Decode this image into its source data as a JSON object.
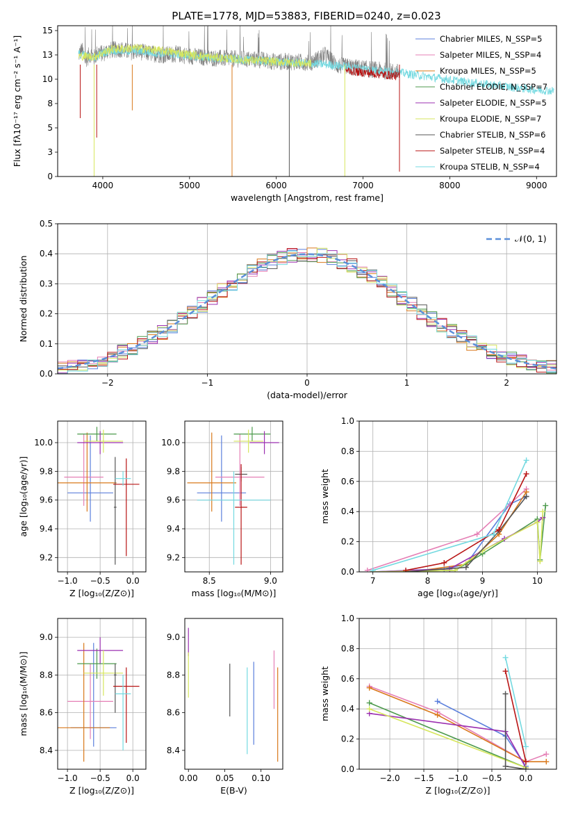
{
  "figure_title": "PLATE=1778, MJD=53883, FIBERID=0240, z=0.023",
  "colors": {
    "Chabrier MILES": "#5b7fdc",
    "Salpeter MILES": "#e57fb5",
    "Kroupa MILES": "#d9781a",
    "Chabrier ELODIE": "#4c9a4c",
    "Salpeter ELODIE": "#9b2fb0",
    "Kroupa ELODIE": "#d6e65c",
    "Chabrier STELIB": "#555555",
    "Salpeter STELIB": "#b81414",
    "Kroupa STELIB": "#73d9e0"
  },
  "chart_data": [
    {
      "id": "spectrum",
      "type": "line",
      "title": "PLATE=1778, MJD=53883, FIBERID=0240, z=0.023",
      "xlabel": "wavelength [Angstrom, rest frame]",
      "ylabel": "Flux [fλ10⁻¹⁷ erg cm⁻² s⁻¹ A⁻¹]",
      "xlim": [
        3480,
        9230
      ],
      "ylim": [
        0,
        15.5
      ],
      "xticks": [
        4000,
        5000,
        6000,
        7000,
        8000,
        9000
      ],
      "yticks": [
        0.0,
        2.5,
        5.0,
        7.5,
        10.0,
        12.5,
        15.0
      ],
      "legend": "top-right",
      "legend_entries": [
        "Chabrier MILES, N_SSP=5",
        "Salpeter MILES, N_SSP=4",
        "Kroupa MILES, N_SSP=5",
        "Chabrier ELODIE, N_SSP=7",
        "Salpeter ELODIE, N_SSP=5",
        "Kroupa ELODIE, N_SSP=7",
        "Chabrier STELIB, N_SSP=6",
        "Salpeter STELIB, N_SSP=4",
        "Kroupa STELIB, N_SSP=4"
      ],
      "data_series": {
        "name": "data",
        "color": "#808080",
        "x": [
          3720,
          3760,
          3800,
          3860,
          3900,
          3950,
          4000,
          4050,
          4100,
          4200,
          4300,
          4400,
          4500,
          4700,
          4860,
          5000,
          5200,
          5500,
          5800,
          6000,
          6200,
          6400,
          6563,
          6700,
          6900,
          7100,
          7300,
          7420
        ],
        "y": [
          12.5,
          13.0,
          12.0,
          12.6,
          12.2,
          12.8,
          12.6,
          12.9,
          13.0,
          13.1,
          12.8,
          12.9,
          12.7,
          12.5,
          12.6,
          12.4,
          12.2,
          12.1,
          12.0,
          11.8,
          11.8,
          11.7,
          12.5,
          11.4,
          11.2,
          11.0,
          10.8,
          10.7
        ]
      },
      "model_series": [
        {
          "name": "Kroupa STELIB",
          "x": [
            3720,
            3800,
            3900,
            4000,
            4100,
            4200,
            4400,
            4600,
            4800,
            5000,
            5400,
            5800,
            6200,
            6600,
            7000,
            7400,
            7800,
            8200,
            8600,
            9000,
            9200
          ],
          "y": [
            12.6,
            12.4,
            12.2,
            12.7,
            13.0,
            12.9,
            12.9,
            12.7,
            12.6,
            12.4,
            12.1,
            11.9,
            11.7,
            11.5,
            11.1,
            10.7,
            10.2,
            9.7,
            9.3,
            8.9,
            8.8
          ]
        },
        {
          "name": "Kroupa ELODIE",
          "x": [
            3720,
            3900,
            4100,
            4400,
            4800,
            5200,
            5600,
            6000,
            6400
          ],
          "y": [
            12.4,
            12.3,
            13.1,
            13.2,
            12.8,
            12.3,
            12.0,
            11.8,
            11.6
          ]
        },
        {
          "name": "Salpeter STELIB",
          "x": [
            6800,
            7000,
            7200,
            7420
          ],
          "y": [
            10.9,
            10.7,
            10.5,
            10.3
          ]
        }
      ],
      "dips": [
        {
          "name": "Kroupa ELODIE",
          "x": 3900,
          "y": 0.0
        },
        {
          "name": "Salpeter STELIB",
          "x": 3740,
          "y": 6.0
        },
        {
          "name": "Salpeter STELIB",
          "x": 3930,
          "y": 4.0
        },
        {
          "name": "Kroupa MILES",
          "x": 5490,
          "y": 0.0
        },
        {
          "name": "Kroupa ELODIE",
          "x": 6790,
          "y": 0.0
        },
        {
          "name": "Salpeter STELIB",
          "x": 7420,
          "y": 0.5
        },
        {
          "name": "Chabrier STELIB",
          "x": 6150,
          "y": 0.0
        },
        {
          "name": "Kroupa MILES",
          "x": 4340,
          "y": 6.8
        }
      ]
    },
    {
      "id": "residuals",
      "type": "line",
      "xlabel": "(data-model)/error",
      "ylabel": "Normed distribution",
      "xlim": [
        -2.5,
        2.5
      ],
      "ylim": [
        0,
        0.5
      ],
      "xticks": [
        -2,
        -1,
        0,
        1,
        2
      ],
      "yticks": [
        0.0,
        0.1,
        0.2,
        0.3,
        0.4,
        0.5
      ],
      "grid": true,
      "legend": "top-right",
      "legend_entries": [
        "𝒩(0, 1)"
      ],
      "gaussian": {
        "mean": 0,
        "sigma": 1,
        "color": "#5b8fd9"
      },
      "histogram_bin_width": 0.1
    },
    {
      "id": "age_vs_Z",
      "type": "scatter",
      "xlabel": "Z [log₁₀(Z/Z⊙)]",
      "ylabel": "age  [log₁₀(age/yr)]",
      "xlim": [
        -1.15,
        0.2
      ],
      "ylim": [
        9.1,
        10.15
      ],
      "xticks": [
        -1.0,
        -0.5,
        0.0
      ],
      "yticks": [
        9.2,
        9.4,
        9.6,
        9.8,
        10.0
      ],
      "grid": true,
      "points": [
        {
          "series": "Chabrier MILES",
          "x": -0.65,
          "xerr": [
            0.35,
            0.35
          ],
          "y": 9.65,
          "yerr": [
            0.2,
            0.4
          ]
        },
        {
          "series": "Salpeter MILES",
          "x": -0.75,
          "xerr": [
            0.3,
            0.3
          ],
          "y": 9.76,
          "yerr": [
            0.2,
            0.3
          ]
        },
        {
          "series": "Kroupa MILES",
          "x": -0.7,
          "xerr": [
            0.45,
            0.45
          ],
          "y": 9.72,
          "yerr": [
            0.2,
            0.35
          ]
        },
        {
          "series": "Chabrier ELODIE",
          "x": -0.55,
          "xerr": [
            0.3,
            0.3
          ],
          "y": 10.06,
          "yerr": [
            0.05,
            0.05
          ]
        },
        {
          "series": "Salpeter ELODIE",
          "x": -0.5,
          "xerr": [
            0.35,
            0.35
          ],
          "y": 10.0,
          "yerr": [
            0.08,
            0.08
          ]
        },
        {
          "series": "Kroupa ELODIE",
          "x": -0.45,
          "xerr": [
            0.3,
            0.3
          ],
          "y": 10.01,
          "yerr": [
            0.08,
            0.08
          ]
        },
        {
          "series": "Chabrier STELIB",
          "x": -0.27,
          "xerr": [
            0.02,
            0.02
          ],
          "y": 9.55,
          "yerr": [
            0.4,
            0.35
          ]
        },
        {
          "series": "Salpeter STELIB",
          "x": -0.1,
          "xerr": [
            0.2,
            0.2
          ],
          "y": 9.71,
          "yerr": [
            0.5,
            0.18
          ]
        },
        {
          "series": "Kroupa STELIB",
          "x": -0.15,
          "xerr": [
            0.12,
            0.12
          ],
          "y": 9.75,
          "yerr": [
            0.05,
            0.05
          ]
        }
      ]
    },
    {
      "id": "age_vs_mass",
      "type": "scatter",
      "xlabel": "mass [log₁₀(M/M⊙)]",
      "ylabel": "",
      "xlim": [
        8.3,
        9.1
      ],
      "ylim": [
        9.1,
        10.15
      ],
      "xticks": [
        8.5,
        9.0
      ],
      "yticks": [
        9.2,
        9.4,
        9.6,
        9.8,
        10.0
      ],
      "grid": true,
      "points": [
        {
          "series": "Chabrier MILES",
          "x": 8.6,
          "xerr": [
            0.2,
            0.2
          ],
          "y": 9.65,
          "yerr": [
            0.2,
            0.4
          ]
        },
        {
          "series": "Salpeter MILES",
          "x": 8.75,
          "xerr": [
            0.2,
            0.2
          ],
          "y": 9.76,
          "yerr": [
            0.2,
            0.3
          ]
        },
        {
          "series": "Kroupa MILES",
          "x": 8.52,
          "xerr": [
            0.2,
            0.2
          ],
          "y": 9.72,
          "yerr": [
            0.2,
            0.35
          ]
        },
        {
          "series": "Chabrier ELODIE",
          "x": 8.85,
          "xerr": [
            0.15,
            0.15
          ],
          "y": 10.06,
          "yerr": [
            0.05,
            0.05
          ]
        },
        {
          "series": "Salpeter ELODIE",
          "x": 8.95,
          "xerr": [
            0.12,
            0.12
          ],
          "y": 10.0,
          "yerr": [
            0.08,
            0.08
          ]
        },
        {
          "series": "Kroupa ELODIE",
          "x": 8.82,
          "xerr": [
            0.12,
            0.12
          ],
          "y": 10.01,
          "yerr": [
            0.08,
            0.08
          ]
        },
        {
          "series": "Chabrier STELIB",
          "x": 8.76,
          "xerr": [
            0.05,
            0.05
          ],
          "y": 9.78,
          "yerr": [
            0.05,
            0.05
          ]
        },
        {
          "series": "Salpeter STELIB",
          "x": 8.76,
          "xerr": [
            0.05,
            0.05
          ],
          "y": 9.55,
          "yerr": [
            0.4,
            0.3
          ]
        },
        {
          "series": "Kroupa STELIB",
          "x": 8.7,
          "xerr": [
            0.3,
            0.3
          ],
          "y": 9.6,
          "yerr": [
            0.45,
            0.2
          ]
        }
      ]
    },
    {
      "id": "weight_vs_age",
      "type": "line",
      "xlabel": "age  [log₁₀(age/yr)]",
      "ylabel": "mass weight",
      "xlim": [
        6.75,
        10.35
      ],
      "ylim": [
        0,
        1.0
      ],
      "xticks": [
        7,
        8,
        9,
        10
      ],
      "yticks": [
        0.0,
        0.2,
        0.4,
        0.6,
        0.8,
        1.0
      ],
      "grid": true,
      "series": [
        {
          "name": "Chabrier MILES",
          "x": [
            7.0,
            8.3,
            8.7,
            9.5,
            9.8
          ],
          "y": [
            0.0,
            0.02,
            0.05,
            0.45,
            0.5
          ]
        },
        {
          "name": "Salpeter MILES",
          "x": [
            6.9,
            8.9,
            9.8
          ],
          "y": [
            0.01,
            0.25,
            0.55
          ]
        },
        {
          "name": "Kroupa MILES",
          "x": [
            7.7,
            8.7,
            9.3,
            9.8
          ],
          "y": [
            0.0,
            0.05,
            0.25,
            0.53
          ]
        },
        {
          "name": "Chabrier ELODIE",
          "x": [
            7.0,
            8.5,
            9.0,
            10.0,
            10.05,
            10.15
          ],
          "y": [
            0.0,
            0.01,
            0.12,
            0.35,
            0.08,
            0.44
          ]
        },
        {
          "name": "Salpeter ELODIE",
          "x": [
            7.0,
            8.4,
            9.4,
            10.0,
            10.1
          ],
          "y": [
            0.0,
            0.02,
            0.22,
            0.33,
            0.36
          ]
        },
        {
          "name": "Kroupa ELODIE",
          "x": [
            7.0,
            8.5,
            9.0,
            10.0,
            10.05,
            10.1
          ],
          "y": [
            0.0,
            0.01,
            0.14,
            0.33,
            0.07,
            0.4
          ]
        },
        {
          "name": "Chabrier STELIB",
          "x": [
            7.6,
            8.7,
            9.3,
            9.8
          ],
          "y": [
            0.0,
            0.03,
            0.27,
            0.5
          ]
        },
        {
          "name": "Salpeter STELIB",
          "x": [
            7.6,
            8.3,
            9.3,
            9.8
          ],
          "y": [
            0.01,
            0.06,
            0.28,
            0.65
          ]
        },
        {
          "name": "Kroupa STELIB",
          "x": [
            7.0,
            9.2,
            9.8
          ],
          "y": [
            0.01,
            0.25,
            0.74
          ]
        }
      ]
    },
    {
      "id": "mass_vs_Z",
      "type": "scatter",
      "xlabel": "Z [log₁₀(Z/Z⊙)]",
      "ylabel": "mass [log₁₀(M/M⊙)]",
      "xlim": [
        -1.15,
        0.2
      ],
      "ylim": [
        8.3,
        9.1
      ],
      "xticks": [
        -1.0,
        -0.5,
        0.0
      ],
      "yticks": [
        8.4,
        8.6,
        8.8,
        9.0
      ],
      "grid": true,
      "points": [
        {
          "series": "Chabrier MILES",
          "x": -0.6,
          "xerr": [
            0.35,
            0.35
          ],
          "y": 8.52,
          "yerr": [
            0.1,
            0.45
          ]
        },
        {
          "series": "Salpeter MILES",
          "x": -0.65,
          "xerr": [
            0.35,
            0.35
          ],
          "y": 8.66,
          "yerr": [
            0.2,
            0.2
          ]
        },
        {
          "series": "Kroupa MILES",
          "x": -0.75,
          "xerr": [
            0.4,
            0.4
          ],
          "y": 8.52,
          "yerr": [
            0.18,
            0.45
          ]
        },
        {
          "series": "Chabrier ELODIE",
          "x": -0.55,
          "xerr": [
            0.3,
            0.3
          ],
          "y": 8.86,
          "yerr": [
            0.08,
            0.08
          ]
        },
        {
          "series": "Salpeter ELODIE",
          "x": -0.5,
          "xerr": [
            0.35,
            0.35
          ],
          "y": 8.93,
          "yerr": [
            0.07,
            0.07
          ]
        },
        {
          "series": "Kroupa ELODIE",
          "x": -0.45,
          "xerr": [
            0.3,
            0.3
          ],
          "y": 8.81,
          "yerr": [
            0.12,
            0.12
          ]
        },
        {
          "series": "Chabrier STELIB",
          "x": -0.27,
          "xerr": [
            0.02,
            0.02
          ],
          "y": 8.8,
          "yerr": [
            0.2,
            0.06
          ]
        },
        {
          "series": "Salpeter STELIB",
          "x": -0.1,
          "xerr": [
            0.2,
            0.2
          ],
          "y": 8.74,
          "yerr": [
            0.3,
            0.1
          ]
        },
        {
          "series": "Kroupa STELIB",
          "x": -0.15,
          "xerr": [
            0.12,
            0.12
          ],
          "y": 8.7,
          "yerr": [
            0.3,
            0.1
          ]
        }
      ]
    },
    {
      "id": "mass_vs_EBV",
      "type": "scatter",
      "xlabel": "E(B-V)",
      "ylabel": "",
      "xlim": [
        -0.005,
        0.13
      ],
      "ylim": [
        8.3,
        9.1
      ],
      "xticks": [
        0.0,
        0.05,
        0.1
      ],
      "yticks": [
        8.4,
        8.6,
        8.8,
        9.0
      ],
      "points": [
        {
          "series": "Salpeter ELODIE",
          "x": 0.0,
          "y": 8.95,
          "yerr": [
            0.05,
            0.1
          ]
        },
        {
          "series": "Kroupa ELODIE",
          "x": 0.0,
          "y": 8.8,
          "yerr": [
            0.12,
            0.12
          ]
        },
        {
          "series": "Chabrier STELIB",
          "x": 0.057,
          "y": 8.72,
          "yerr": [
            0.14,
            0.14
          ]
        },
        {
          "series": "Kroupa STELIB",
          "x": 0.081,
          "y": 8.62,
          "yerr": [
            0.24,
            0.22
          ]
        },
        {
          "series": "Chabrier MILES",
          "x": 0.09,
          "y": 8.65,
          "yerr": [
            0.22,
            0.22
          ]
        },
        {
          "series": "Salpeter MILES",
          "x": 0.118,
          "y": 8.77,
          "yerr": [
            0.15,
            0.16
          ]
        },
        {
          "series": "Kroupa MILES",
          "x": 0.123,
          "y": 8.6,
          "yerr": [
            0.26,
            0.24
          ]
        }
      ]
    },
    {
      "id": "weight_vs_Z",
      "type": "line",
      "xlabel": "Z [log₁₀(Z/Z⊙)]",
      "ylabel": "mass weight",
      "xlim": [
        -2.45,
        0.45
      ],
      "ylim": [
        0,
        1.0
      ],
      "xticks": [
        -2.0,
        -1.5,
        -1.0,
        -0.5,
        0.0
      ],
      "yticks": [
        0.0,
        0.2,
        0.4,
        0.6,
        0.8,
        1.0
      ],
      "grid": true,
      "series": [
        {
          "name": "Chabrier MILES",
          "x": [
            -1.3,
            -0.3,
            0.0
          ],
          "y": [
            0.45,
            0.22,
            0.02
          ]
        },
        {
          "name": "Salpeter MILES",
          "x": [
            -2.3,
            -1.3,
            0.0,
            0.3
          ],
          "y": [
            0.55,
            0.38,
            0.05,
            0.1
          ]
        },
        {
          "name": "Kroupa MILES",
          "x": [
            -2.3,
            -1.3,
            0.0,
            0.3
          ],
          "y": [
            0.54,
            0.36,
            0.05,
            0.05
          ]
        },
        {
          "name": "Chabrier ELODIE",
          "x": [
            -2.3,
            0.0
          ],
          "y": [
            0.44,
            0.01
          ]
        },
        {
          "name": "Salpeter ELODIE",
          "x": [
            -2.3,
            -0.3,
            0.0
          ],
          "y": [
            0.37,
            0.25,
            0.01
          ]
        },
        {
          "name": "Kroupa ELODIE",
          "x": [
            -2.3,
            0.0
          ],
          "y": [
            0.4,
            0.01
          ]
        },
        {
          "name": "Chabrier STELIB",
          "x": [
            -0.3,
            -0.3,
            0.0
          ],
          "y": [
            0.5,
            0.02,
            0.0
          ]
        },
        {
          "name": "Salpeter STELIB",
          "x": [
            -0.3,
            0.0
          ],
          "y": [
            0.65,
            0.05
          ]
        },
        {
          "name": "Kroupa STELIB",
          "x": [
            -0.3,
            0.0
          ],
          "y": [
            0.74,
            0.15
          ]
        }
      ]
    }
  ]
}
